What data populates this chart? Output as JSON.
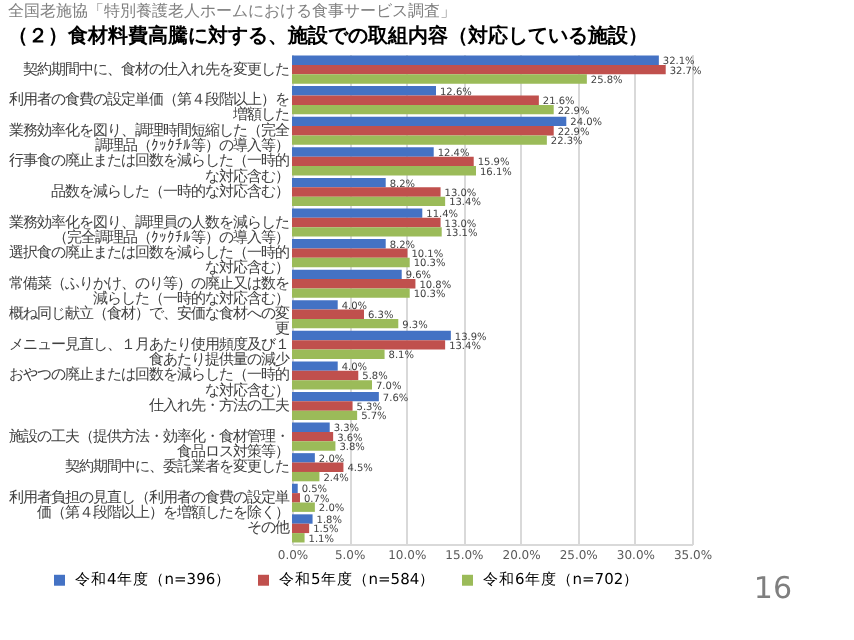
{
  "chart_data": {
    "type": "bar",
    "orientation": "horizontal",
    "title": "（２）食材料費高騰に対する、施設での取組内容（対応している施設）",
    "subtitle": "全国老施協「特別養護老人ホームにおける食事サービス調査」",
    "annotations": [
      "16"
    ],
    "categories": [
      "契約期間中に、食材の仕入れ先を変更した",
      "利用者の食費の設定単価（第４段階以上）を増額した",
      "業務効率化を図り、調理時間短縮した（完全調理品（ｸｯｸﾁﾙ等）の導入等）",
      "行事食の廃止または回数を減らした（一時的な対応含む）",
      "品数を減らした（一時的な対応含む）",
      "業務効率化を図り、調理員の人数を減らした（完全調理品（ｸｯｸﾁﾙ等）の導入等）",
      "選択食の廃止または回数を減らした（一時的な対応含む）",
      "常備菜（ふりかけ、のり等）の廃止又は数を減らした（一時的な対応含む）",
      "概ね同じ献立（食材）で、安価な食材への変更",
      "メニュー見直し、１月あたり使用頻度及び１食あたり提供量の減少",
      "おやつの廃止または回数を減らした（一時的な対応含む）",
      "仕入れ先・方法の工夫",
      "施設の工夫（提供方法・効率化・食材管理・食品ロス対策等）",
      "契約期間中に、委託業者を変更した",
      "利用者負担の見直し（利用者の食費の設定単価（第４段階以上）を増額したを除く）",
      "その他"
    ],
    "series": [
      {
        "name": "令和4年度（n=396）",
        "color": "#4472c4",
        "values": [
          32.1,
          12.6,
          24.0,
          12.4,
          8.2,
          11.4,
          8.2,
          9.6,
          4.0,
          13.9,
          4.0,
          7.6,
          3.3,
          2.0,
          0.5,
          1.8
        ],
        "value_labels": [
          "32.1%",
          "12.6%",
          "24.0%",
          "12.4%",
          "8.2%",
          "11.4%",
          "8.2%",
          "9.6%",
          "4.0%",
          "13.9%",
          "4.0%",
          "7.6%",
          "3.3%",
          "2.0%",
          "0.5%",
          "1.8%"
        ]
      },
      {
        "name": "令和5年度（n=584）",
        "color": "#c0504d",
        "values": [
          32.7,
          21.6,
          22.9,
          15.9,
          13.0,
          13.0,
          10.1,
          10.8,
          6.3,
          13.4,
          5.8,
          5.3,
          3.6,
          4.5,
          0.7,
          1.5
        ],
        "value_labels": [
          "32.7%",
          "21.6%",
          "22.9%",
          "15.9%",
          "13.0%",
          "13.0%",
          "10.1%",
          "10.8%",
          "6.3%",
          "13.4%",
          "5.8%",
          "5.3%",
          "3.6%",
          "4.5%",
          "0.7%",
          "1.5%"
        ]
      },
      {
        "name": "令和6年度（n=702）",
        "color": "#9bbb59",
        "values": [
          25.8,
          22.9,
          22.3,
          16.1,
          13.4,
          13.1,
          10.3,
          10.3,
          9.3,
          8.1,
          7.0,
          5.7,
          3.8,
          2.4,
          2.0,
          1.1
        ],
        "value_labels": [
          "25.8%",
          "22.9%",
          "22.3%",
          "16.1%",
          "13.4%",
          "13.1%",
          "10.3%",
          "10.3%",
          "9.3%",
          "8.1%",
          "7.0%",
          "5.7%",
          "3.8%",
          "2.4%",
          "2.0%",
          "1.1%"
        ]
      }
    ],
    "xlim": [
      0,
      35
    ],
    "xticks": [
      {
        "value": 0,
        "label": "0.0%"
      },
      {
        "value": 5,
        "label": "5.0%"
      },
      {
        "value": 10,
        "label": "10.0%"
      },
      {
        "value": 15,
        "label": "15.0%"
      },
      {
        "value": 20,
        "label": "20.0%"
      },
      {
        "value": 25,
        "label": "25.0%"
      },
      {
        "value": 30,
        "label": "30.0%"
      },
      {
        "value": 35,
        "label": "35.0%"
      }
    ],
    "grid": "x",
    "legend": "bottom"
  }
}
